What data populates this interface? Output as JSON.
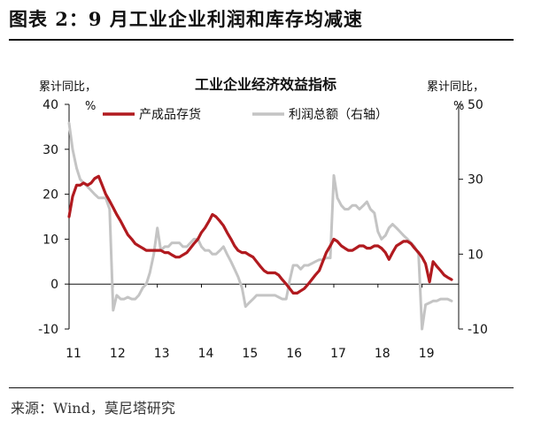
{
  "figure_title": "图表 2：9 月工业企业利润和库存均减速",
  "source": "来源：Wind，莫尼塔研究",
  "chart_data": {
    "type": "line",
    "title": "工业企业经济效益指标",
    "left_unit": [
      "累计同比，",
      "%"
    ],
    "right_unit": [
      "累计同比，",
      "%"
    ],
    "x_ticks": [
      "11",
      "12",
      "13",
      "14",
      "15",
      "16",
      "17",
      "18",
      "19"
    ],
    "y_left": {
      "ylim": [
        -10,
        40
      ],
      "ticks": [
        "-10",
        "0",
        "10",
        "20",
        "30",
        "40"
      ]
    },
    "y_right": {
      "ylim": [
        -10,
        50
      ],
      "ticks": [
        "-10",
        "10",
        "30",
        "50"
      ]
    },
    "colors": {
      "inventory": "#b11a1f",
      "profit": "#c4c4c4",
      "axis": "#111111"
    },
    "series": [
      {
        "name": "产成品存货",
        "axis": "left",
        "values": [
          [
            2011.0,
            15
          ],
          [
            2011.08,
            19.5
          ],
          [
            2011.17,
            22
          ],
          [
            2011.25,
            22
          ],
          [
            2011.33,
            22.5
          ],
          [
            2011.42,
            22
          ],
          [
            2011.5,
            22.5
          ],
          [
            2011.58,
            23.5
          ],
          [
            2011.67,
            24
          ],
          [
            2011.75,
            22
          ],
          [
            2011.83,
            20
          ],
          [
            2011.92,
            18.5
          ],
          [
            2012.0,
            17
          ],
          [
            2012.08,
            15.5
          ],
          [
            2012.17,
            14
          ],
          [
            2012.25,
            12.5
          ],
          [
            2012.33,
            11
          ],
          [
            2012.42,
            10
          ],
          [
            2012.5,
            9
          ],
          [
            2012.58,
            8.5
          ],
          [
            2012.67,
            8
          ],
          [
            2012.75,
            7.5
          ],
          [
            2012.83,
            7.5
          ],
          [
            2012.92,
            7.5
          ],
          [
            2013.0,
            7.5
          ],
          [
            2013.08,
            7.5
          ],
          [
            2013.17,
            7
          ],
          [
            2013.25,
            7
          ],
          [
            2013.33,
            6.5
          ],
          [
            2013.42,
            6
          ],
          [
            2013.5,
            6
          ],
          [
            2013.58,
            6.5
          ],
          [
            2013.67,
            7
          ],
          [
            2013.75,
            8
          ],
          [
            2013.83,
            9
          ],
          [
            2013.92,
            10
          ],
          [
            2014.0,
            11.5
          ],
          [
            2014.08,
            12.5
          ],
          [
            2014.17,
            14
          ],
          [
            2014.25,
            15.5
          ],
          [
            2014.33,
            15
          ],
          [
            2014.42,
            14
          ],
          [
            2014.5,
            13
          ],
          [
            2014.58,
            11.5
          ],
          [
            2014.67,
            10
          ],
          [
            2014.75,
            8.5
          ],
          [
            2014.83,
            7.5
          ],
          [
            2014.92,
            7
          ],
          [
            2015.0,
            7
          ],
          [
            2015.08,
            6.5
          ],
          [
            2015.17,
            6
          ],
          [
            2015.25,
            5
          ],
          [
            2015.33,
            4
          ],
          [
            2015.42,
            3
          ],
          [
            2015.5,
            2.5
          ],
          [
            2015.58,
            2.5
          ],
          [
            2015.67,
            2.5
          ],
          [
            2015.75,
            2
          ],
          [
            2015.83,
            1
          ],
          [
            2015.92,
            0
          ],
          [
            2016.0,
            -1
          ],
          [
            2016.08,
            -2
          ],
          [
            2016.17,
            -2
          ],
          [
            2016.25,
            -1.5
          ],
          [
            2016.33,
            -1
          ],
          [
            2016.42,
            0
          ],
          [
            2016.5,
            1
          ],
          [
            2016.58,
            2
          ],
          [
            2016.67,
            3
          ],
          [
            2016.75,
            5
          ],
          [
            2016.83,
            7
          ],
          [
            2016.92,
            8.5
          ],
          [
            2017.0,
            10
          ],
          [
            2017.08,
            9.5
          ],
          [
            2017.17,
            8.5
          ],
          [
            2017.25,
            8
          ],
          [
            2017.33,
            7.5
          ],
          [
            2017.42,
            7.5
          ],
          [
            2017.5,
            8
          ],
          [
            2017.58,
            8.5
          ],
          [
            2017.67,
            8.5
          ],
          [
            2017.75,
            8
          ],
          [
            2017.83,
            8
          ],
          [
            2017.92,
            8.5
          ],
          [
            2018.0,
            8.5
          ],
          [
            2018.08,
            8
          ],
          [
            2018.17,
            7
          ],
          [
            2018.25,
            5.5
          ],
          [
            2018.33,
            7
          ],
          [
            2018.42,
            8.5
          ],
          [
            2018.5,
            9
          ],
          [
            2018.58,
            9.5
          ],
          [
            2018.67,
            9.5
          ],
          [
            2018.75,
            9
          ],
          [
            2018.83,
            8
          ],
          [
            2018.92,
            7
          ],
          [
            2019.0,
            6
          ],
          [
            2019.08,
            4.5
          ],
          [
            2019.17,
            0.5
          ],
          [
            2019.25,
            5
          ],
          [
            2019.33,
            4
          ],
          [
            2019.42,
            3
          ],
          [
            2019.5,
            2
          ],
          [
            2019.58,
            1.5
          ],
          [
            2019.67,
            1
          ]
        ]
      },
      {
        "name": "利润总额（右轴）",
        "axis": "right",
        "values": [
          [
            2011.0,
            45
          ],
          [
            2011.08,
            38
          ],
          [
            2011.17,
            33
          ],
          [
            2011.25,
            30
          ],
          [
            2011.33,
            29
          ],
          [
            2011.42,
            28
          ],
          [
            2011.5,
            27
          ],
          [
            2011.58,
            26
          ],
          [
            2011.67,
            25
          ],
          [
            2011.75,
            25
          ],
          [
            2011.83,
            25
          ],
          [
            2011.92,
            22
          ],
          [
            2012.0,
            -5
          ],
          [
            2012.08,
            -1
          ],
          [
            2012.17,
            -2
          ],
          [
            2012.25,
            -2
          ],
          [
            2012.33,
            -1.5
          ],
          [
            2012.42,
            -2
          ],
          [
            2012.5,
            -2
          ],
          [
            2012.58,
            -1
          ],
          [
            2012.67,
            1
          ],
          [
            2012.75,
            2
          ],
          [
            2012.83,
            5
          ],
          [
            2012.92,
            10
          ],
          [
            2013.0,
            17
          ],
          [
            2013.08,
            11
          ],
          [
            2013.17,
            12
          ],
          [
            2013.25,
            12
          ],
          [
            2013.33,
            13
          ],
          [
            2013.42,
            13
          ],
          [
            2013.5,
            13
          ],
          [
            2013.58,
            12
          ],
          [
            2013.67,
            12
          ],
          [
            2013.75,
            13
          ],
          [
            2013.83,
            14
          ],
          [
            2013.92,
            14
          ],
          [
            2014.0,
            12
          ],
          [
            2014.08,
            11
          ],
          [
            2014.17,
            11
          ],
          [
            2014.25,
            10
          ],
          [
            2014.33,
            10
          ],
          [
            2014.42,
            11
          ],
          [
            2014.5,
            12
          ],
          [
            2014.58,
            10
          ],
          [
            2014.67,
            8
          ],
          [
            2014.75,
            6
          ],
          [
            2014.83,
            4
          ],
          [
            2014.92,
            1
          ],
          [
            2015.0,
            -4
          ],
          [
            2015.08,
            -3
          ],
          [
            2015.17,
            -2
          ],
          [
            2015.25,
            -1
          ],
          [
            2015.33,
            -1
          ],
          [
            2015.42,
            -1
          ],
          [
            2015.5,
            -1
          ],
          [
            2015.58,
            -1
          ],
          [
            2015.67,
            -1
          ],
          [
            2015.75,
            -1.5
          ],
          [
            2015.83,
            -2
          ],
          [
            2015.92,
            -2
          ],
          [
            2016.0,
            3
          ],
          [
            2016.08,
            7
          ],
          [
            2016.17,
            7
          ],
          [
            2016.25,
            6
          ],
          [
            2016.33,
            7
          ],
          [
            2016.42,
            7
          ],
          [
            2016.5,
            7.5
          ],
          [
            2016.58,
            8
          ],
          [
            2016.67,
            8.5
          ],
          [
            2016.75,
            8.5
          ],
          [
            2016.83,
            9
          ],
          [
            2016.92,
            9
          ],
          [
            2017.0,
            31
          ],
          [
            2017.08,
            25
          ],
          [
            2017.17,
            23
          ],
          [
            2017.25,
            22
          ],
          [
            2017.33,
            22
          ],
          [
            2017.42,
            23
          ],
          [
            2017.5,
            23
          ],
          [
            2017.58,
            22
          ],
          [
            2017.67,
            23
          ],
          [
            2017.75,
            24
          ],
          [
            2017.83,
            22
          ],
          [
            2017.92,
            21
          ],
          [
            2018.0,
            16
          ],
          [
            2018.08,
            14
          ],
          [
            2018.17,
            15
          ],
          [
            2018.25,
            17
          ],
          [
            2018.33,
            18
          ],
          [
            2018.42,
            17
          ],
          [
            2018.5,
            16
          ],
          [
            2018.58,
            15
          ],
          [
            2018.67,
            14
          ],
          [
            2018.75,
            13
          ],
          [
            2018.83,
            12
          ],
          [
            2018.92,
            10
          ],
          [
            2019.0,
            -10
          ],
          [
            2019.08,
            -3.5
          ],
          [
            2019.17,
            -3
          ],
          [
            2019.25,
            -2.5
          ],
          [
            2019.33,
            -2.5
          ],
          [
            2019.42,
            -2
          ],
          [
            2019.5,
            -2
          ],
          [
            2019.58,
            -2
          ],
          [
            2019.67,
            -2.5
          ]
        ]
      }
    ]
  }
}
